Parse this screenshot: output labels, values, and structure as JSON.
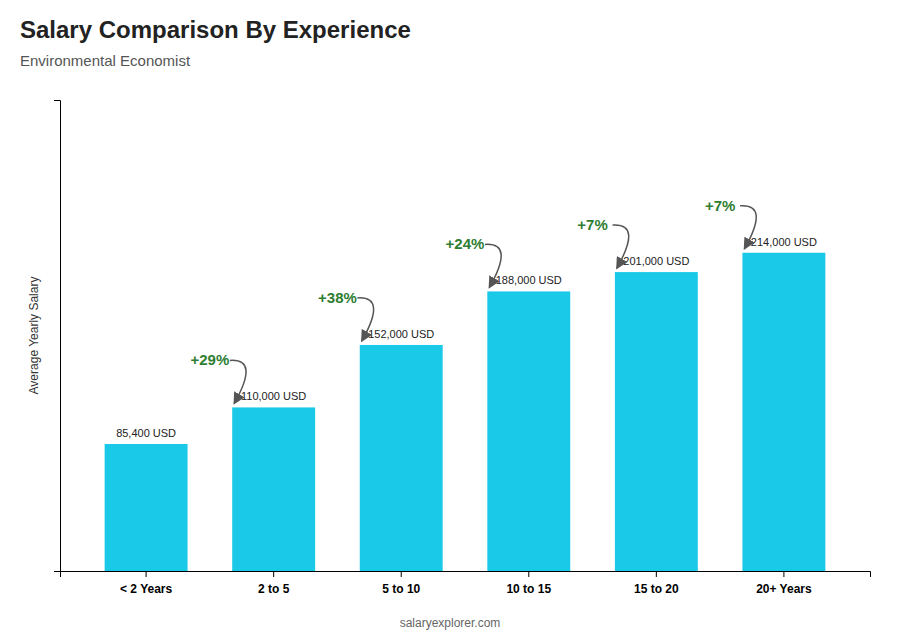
{
  "chart_data": {
    "type": "bar",
    "title": "Salary Comparison By Experience",
    "subtitle": "Environmental Economist",
    "ylabel": "Average Yearly Salary",
    "categories": [
      "< 2 Years",
      "2 to 5",
      "5 to 10",
      "10 to 15",
      "15 to 20",
      "20+ Years"
    ],
    "values": [
      85400,
      110000,
      152000,
      188000,
      201000,
      214000
    ],
    "value_labels": [
      "85,400 USD",
      "110,000 USD",
      "152,000 USD",
      "188,000 USD",
      "201,000 USD",
      "214,000 USD"
    ],
    "data_labels": true,
    "annotations": [
      "+29%",
      "+38%",
      "+24%",
      "+7%",
      "+7%"
    ],
    "footer": "salaryexplorer.com",
    "color": "#1ac8e8",
    "ylim": [
      0,
      316720
    ],
    "tick_labels": "x",
    "grid": false
  }
}
